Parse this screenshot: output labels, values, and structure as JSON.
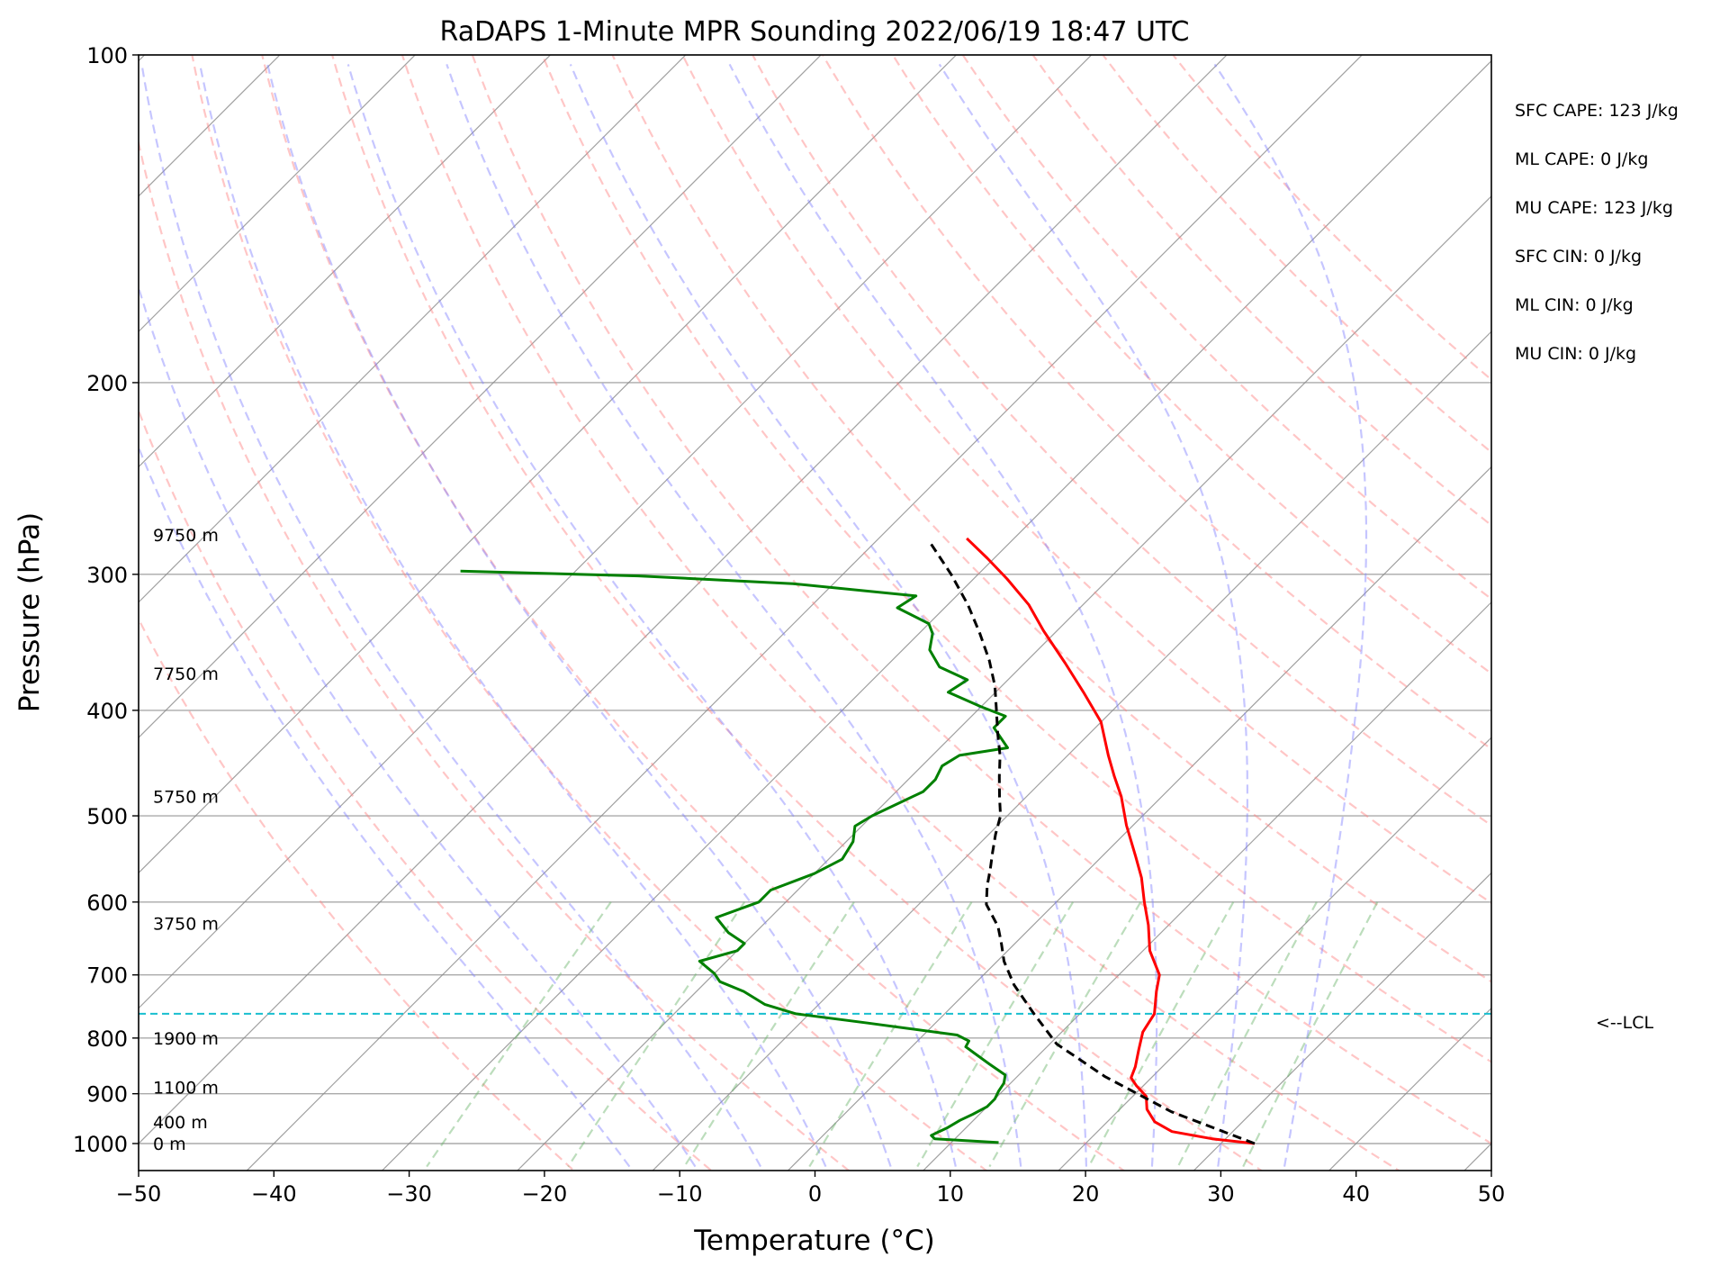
{
  "chart_data": {
    "type": "line",
    "title": "RaDAPS 1-Minute MPR Sounding 2022/06/19 18:47 UTC",
    "xlabel": "Temperature (°C)",
    "ylabel": "Pressure (hPa)",
    "xlim": [
      -50,
      50
    ],
    "ylim": [
      1050,
      100
    ],
    "y_scale": "log",
    "grid": true,
    "x_ticks": [
      -50,
      -40,
      -30,
      -20,
      -10,
      0,
      10,
      20,
      30,
      40,
      50
    ],
    "x_tick_labels": [
      "−50",
      "−40",
      "−30",
      "−20",
      "−10",
      "0",
      "10",
      "20",
      "30",
      "40",
      "50"
    ],
    "y_ticks": [
      100,
      200,
      300,
      400,
      500,
      600,
      700,
      800,
      900,
      1000
    ],
    "y_tick_labels": [
      "100",
      "200",
      "300",
      "400",
      "500",
      "600",
      "700",
      "800",
      "900",
      "1000"
    ],
    "skew_degrees": 45,
    "series": [
      {
        "kind": "temperature",
        "color": "#ff0000",
        "points": [
          [
            32.5,
            1000
          ],
          [
            29.0,
            990
          ],
          [
            25.5,
            975
          ],
          [
            23.5,
            955
          ],
          [
            22.0,
            930
          ],
          [
            21.0,
            905
          ],
          [
            19.5,
            885
          ],
          [
            18.5,
            870
          ],
          [
            18.0,
            850
          ],
          [
            17.0,
            820
          ],
          [
            16.0,
            790
          ],
          [
            15.5,
            760
          ],
          [
            14.0,
            725
          ],
          [
            13.0,
            700
          ],
          [
            10.5,
            665
          ],
          [
            8.5,
            630
          ],
          [
            6.5,
            600
          ],
          [
            4.5,
            570
          ],
          [
            2.5,
            545
          ],
          [
            -0.5,
            510
          ],
          [
            -3.0,
            480
          ],
          [
            -5.0,
            460
          ],
          [
            -7.0,
            440
          ],
          [
            -10.0,
            410
          ],
          [
            -13.5,
            385
          ],
          [
            -17.0,
            362
          ],
          [
            -21.0,
            338
          ],
          [
            -24.0,
            320
          ],
          [
            -27.5,
            303
          ],
          [
            -30.5,
            290
          ],
          [
            -33.5,
            278
          ]
        ]
      },
      {
        "kind": "dewpoint",
        "color": "#008000",
        "points": [
          [
            13.5,
            998
          ],
          [
            8.5,
            990
          ],
          [
            8.0,
            983
          ],
          [
            8.3,
            975
          ],
          [
            8.6,
            968
          ],
          [
            8.8,
            960
          ],
          [
            9.0,
            952
          ],
          [
            9.5,
            940
          ],
          [
            10.0,
            925
          ],
          [
            10.0,
            910
          ],
          [
            9.7,
            895
          ],
          [
            9.5,
            880
          ],
          [
            9.0,
            865
          ],
          [
            7.0,
            845
          ],
          [
            5.0,
            825
          ],
          [
            4.0,
            815
          ],
          [
            3.8,
            805
          ],
          [
            2.5,
            795
          ],
          [
            -5.0,
            775
          ],
          [
            -11.0,
            760
          ],
          [
            -14.0,
            745
          ],
          [
            -16.5,
            725
          ],
          [
            -19.0,
            710
          ],
          [
            -20.0,
            698
          ],
          [
            -22.0,
            680
          ],
          [
            -20.0,
            665
          ],
          [
            -20.0,
            655
          ],
          [
            -22.0,
            640
          ],
          [
            -24.0,
            620
          ],
          [
            -22.0,
            600
          ],
          [
            -22.0,
            585
          ],
          [
            -20.0,
            565
          ],
          [
            -19.0,
            548
          ],
          [
            -19.5,
            528
          ],
          [
            -20.5,
            511
          ],
          [
            -20.0,
            500
          ],
          [
            -18.0,
            475
          ],
          [
            -18.0,
            463
          ],
          [
            -18.5,
            450
          ],
          [
            -18.0,
            440
          ],
          [
            -15.0,
            433
          ],
          [
            -17.5,
            415
          ],
          [
            -17.5,
            405
          ],
          [
            -20.0,
            397
          ],
          [
            -23.5,
            385
          ],
          [
            -23.0,
            375
          ],
          [
            -26.0,
            365
          ],
          [
            -28.0,
            352
          ],
          [
            -29.0,
            340
          ],
          [
            -30.0,
            333
          ],
          [
            -33.5,
            322
          ],
          [
            -33.0,
            314
          ],
          [
            -43.0,
            306
          ],
          [
            -55.0,
            301
          ],
          [
            -68.5,
            298
          ]
        ]
      },
      {
        "kind": "parcel",
        "color": "#000000",
        "points": [
          [
            32.5,
            1000
          ],
          [
            24.0,
            935
          ],
          [
            16.5,
            868
          ],
          [
            10.5,
            810
          ],
          [
            6.6,
            760
          ],
          [
            3.0,
            715
          ],
          [
            0.5,
            680
          ],
          [
            -1.0,
            655
          ],
          [
            -2.5,
            632
          ],
          [
            -5.0,
            603
          ],
          [
            -6.3,
            580
          ],
          [
            -7.3,
            560
          ],
          [
            -8.4,
            540
          ],
          [
            -9.5,
            520
          ],
          [
            -10.5,
            500
          ],
          [
            -12.0,
            480
          ],
          [
            -13.5,
            460
          ],
          [
            -15.0,
            440
          ],
          [
            -16.8,
            420
          ],
          [
            -18.6,
            400
          ],
          [
            -20.5,
            380
          ],
          [
            -22.8,
            360
          ],
          [
            -25.5,
            340
          ],
          [
            -28.5,
            320
          ],
          [
            -32.0,
            300
          ],
          [
            -36.0,
            280
          ]
        ]
      }
    ],
    "lcl_pressure": 760,
    "lcl_label": "<--LCL",
    "dry_adiabats_theta_c": [
      -20,
      -10,
      0,
      10,
      20,
      30,
      40,
      50,
      60,
      70,
      80,
      90,
      100,
      110,
      120,
      130,
      140,
      150
    ],
    "moist_adiabats_t0_c": [
      -15,
      -10,
      -5,
      0,
      5,
      10,
      15,
      20,
      25,
      30,
      35
    ],
    "mixing_ratio_lines_gkg": [
      0.4,
      1,
      2,
      4,
      7,
      10,
      16,
      24,
      32
    ],
    "heights": [
      {
        "label": "0 m",
        "pressure": 1000
      },
      {
        "label": "400 m",
        "pressure": 955
      },
      {
        "label": "1100 m",
        "pressure": 888
      },
      {
        "label": "1900 m",
        "pressure": 800
      },
      {
        "label": "3750 m",
        "pressure": 628
      },
      {
        "label": "5750 m",
        "pressure": 480
      },
      {
        "label": "7750 m",
        "pressure": 370
      },
      {
        "label": "9750 m",
        "pressure": 276
      }
    ],
    "annotations": [
      "SFC CAPE: 123 J/kg",
      "ML CAPE: 0 J/kg",
      "MU CAPE: 123 J/kg",
      "SFC CIN: 0 J/kg",
      "ML CIN: 0 J/kg",
      "MU CIN: 0 J/kg"
    ],
    "colors": {
      "temperature": "#ff0000",
      "dewpoint": "#008000",
      "parcel": "#000000",
      "lcl": "#17becf",
      "dry_adiabats": "#ff8080",
      "moist_adiabats": "#8080ff",
      "mixing_ratio": "#6ab36a",
      "isotherms": "#888888",
      "grid": "#aaaaaa"
    }
  }
}
